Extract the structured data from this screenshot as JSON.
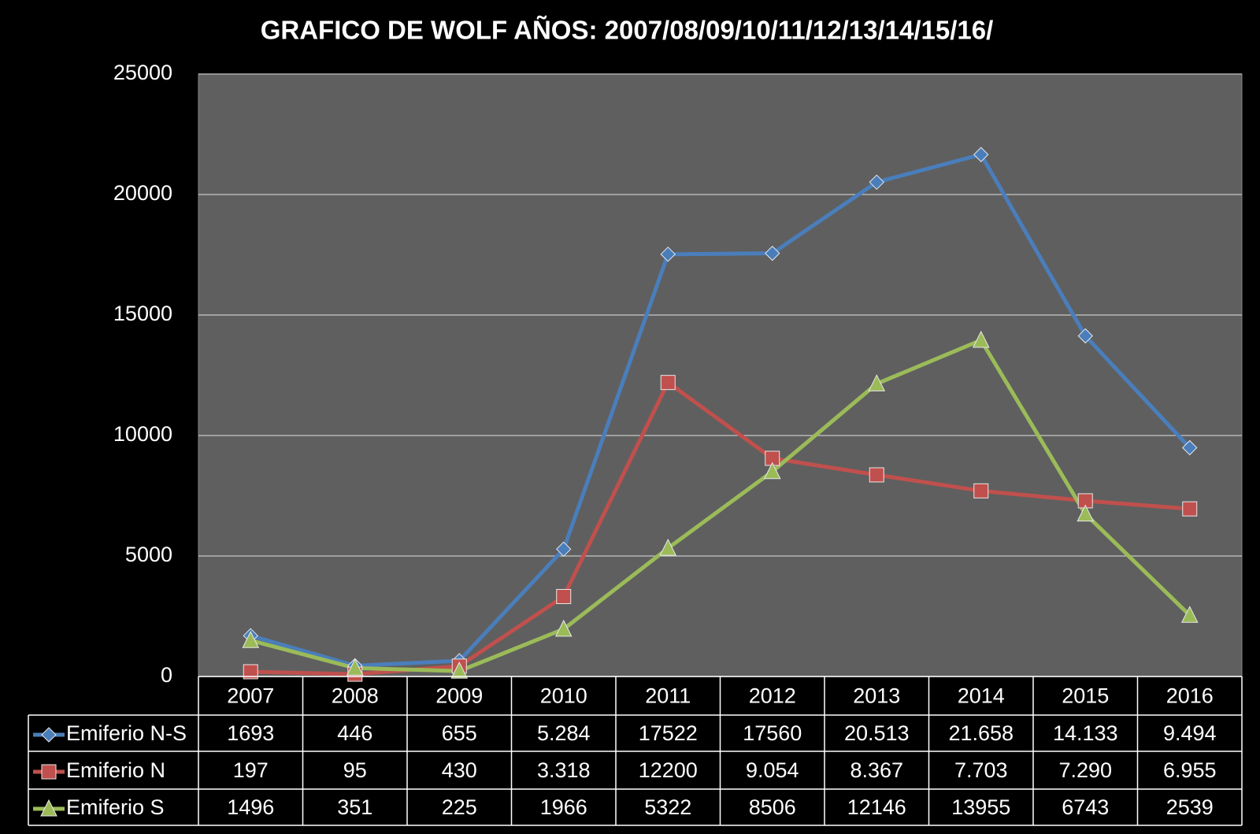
{
  "chart_data": {
    "type": "line",
    "title": "GRAFICO DE WOLF  AÑOS:   2007/08/09/10/11/12/13/14/15/16/",
    "categories": [
      "2007",
      "2008",
      "2009",
      "2010",
      "2011",
      "2012",
      "2013",
      "2014",
      "2015",
      "2016"
    ],
    "series": [
      {
        "name": "Emiferio N-S",
        "color": "#4a7ebb",
        "marker": "diamond",
        "values": [
          1693,
          446,
          655,
          5284,
          17522,
          17560,
          20513,
          21658,
          14133,
          9494
        ],
        "value_labels": [
          "1693",
          "446",
          "655",
          "5.284",
          "17522",
          "17560",
          "20.513",
          "21.658",
          "14.133",
          "9.494"
        ]
      },
      {
        "name": "Emiferio N",
        "color": "#c0504d",
        "marker": "square",
        "values": [
          197,
          95,
          430,
          3318,
          12200,
          9054,
          8367,
          7703,
          7290,
          6955
        ],
        "value_labels": [
          "197",
          "95",
          "430",
          "3.318",
          "12200",
          "9.054",
          "8.367",
          "7.703",
          "7.290",
          "6.955"
        ]
      },
      {
        "name": "Emiferio S",
        "color": "#9bbb59",
        "marker": "triangle",
        "values": [
          1496,
          351,
          225,
          1966,
          5322,
          8506,
          12146,
          13955,
          6743,
          2539
        ],
        "value_labels": [
          "1496",
          "351",
          "225",
          "1966",
          "5322",
          "8506",
          "12146",
          "13955",
          "6743",
          "2539"
        ]
      }
    ],
    "ylim": [
      0,
      25000
    ],
    "yticks": [
      0,
      5000,
      10000,
      15000,
      20000,
      25000
    ],
    "grid": true
  }
}
